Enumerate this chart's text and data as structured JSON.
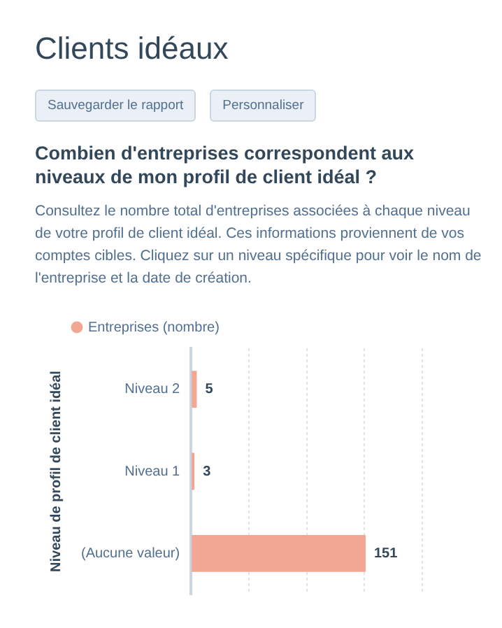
{
  "chart_data": {
    "type": "bar",
    "orientation": "horizontal",
    "title": "Clients idéaux",
    "subtitle": "Combien d'entreprises correspondent aux niveaux de mon profil de client idéal ?",
    "annotations": [
      "Sauvegarder le rapport",
      "Personnaliser",
      "Consultez le nombre total d'entreprises associées à chaque niveau de votre profil de client idéal. Ces informations proviennent de vos comptes cibles. Cliquez sur un niveau spécifique pour voir le nom de l'entreprise et la date de création."
    ],
    "ylabel": "Niveau de profil de client idéal",
    "categories": [
      "Niveau 2",
      "Niveau 1",
      "(Aucune valeur)"
    ],
    "series": [
      {
        "name": "Entreprises (nombre)",
        "color": "#f2a792",
        "values": [
          5,
          3,
          151
        ]
      }
    ],
    "xlim": [
      0,
      200
    ],
    "xticks": [
      {
        "value": 0,
        "label": null
      },
      {
        "value": 50,
        "label": null
      },
      {
        "value": 100,
        "label": null
      },
      {
        "value": 150,
        "label": null
      },
      {
        "value": 200,
        "label": null
      }
    ],
    "tick_labels": "y",
    "grid": "x",
    "legend": "top left",
    "data_labels": true
  }
}
